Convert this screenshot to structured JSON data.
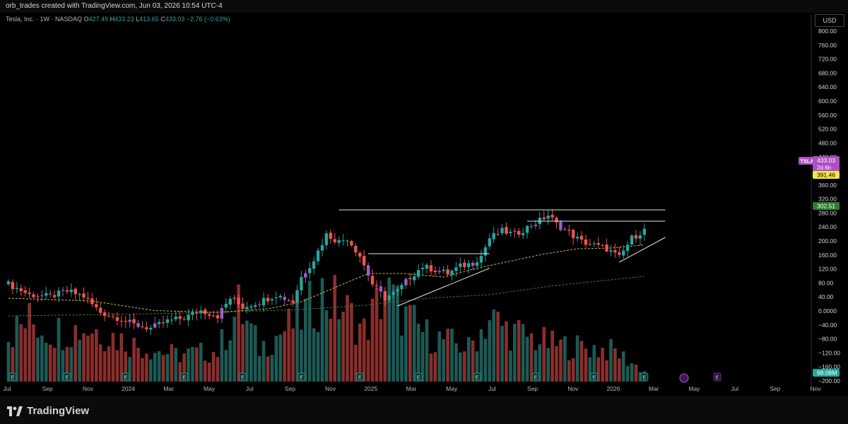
{
  "window": {
    "title": "orb_trades created with TradingView.com, Jun 03, 2026 10:54 UTC-4"
  },
  "header": {
    "symbol": "Tesla, Inc. · 1W · NASDAQ",
    "o_label": "O",
    "o": "427.49",
    "h_label": "H",
    "h": "433.23",
    "l_label": "L",
    "l": "413.65",
    "c_label": "C",
    "c": "433.03",
    "change": "−2.76 (−0.63%)"
  },
  "currency": "USD",
  "badges": {
    "ticker": "TSLA",
    "price": "433.03",
    "countdown": "2d 6h",
    "ma1": "391.46",
    "ma2": "302.51",
    "volume": "98.08M"
  },
  "footer": {
    "brand": "TradingView"
  },
  "colors": {
    "up": "#26a69a",
    "down": "#ef5350",
    "purple": "#9c5fc4",
    "ma_fast": "#c9b44a",
    "ma_slow": "#2e7d32",
    "badge_price": "#b04fc4",
    "badge_ma1": "#f2e64b",
    "badge_ma2": "#2e7d32"
  },
  "chart_data": {
    "type": "candlestick",
    "interval": "1W",
    "price_axis": {
      "ticks": [
        "800.00",
        "760.00",
        "720.00",
        "680.00",
        "640.00",
        "600.00",
        "560.00",
        "520.00",
        "480.00",
        "440.00",
        "400.00",
        "360.00",
        "320.00",
        "280.00",
        "240.00",
        "200.00",
        "160.00",
        "120.00",
        "80.00",
        "40.00",
        "0.0000",
        "−40.00",
        "−80.00",
        "−120.00",
        "−160.00",
        "−200.00"
      ]
    },
    "time_axis": {
      "labels": [
        "Jul",
        "Sep",
        "Nov",
        "2024",
        "Mar",
        "May",
        "Jul",
        "Sep",
        "Nov",
        "2025",
        "Mar",
        "May",
        "Jul",
        "Sep",
        "Nov",
        "2026",
        "Mar",
        "May",
        "Jul",
        "Sep",
        "Nov"
      ]
    },
    "anchors": [
      {
        "i": 0,
        "p": 280
      },
      {
        "i": 5,
        "p": 250
      },
      {
        "i": 10,
        "p": 245
      },
      {
        "i": 14,
        "p": 260
      },
      {
        "i": 18,
        "p": 245
      },
      {
        "i": 22,
        "p": 200
      },
      {
        "i": 26,
        "p": 185
      },
      {
        "i": 30,
        "p": 165
      },
      {
        "i": 34,
        "p": 155
      },
      {
        "i": 38,
        "p": 175
      },
      {
        "i": 42,
        "p": 185
      },
      {
        "i": 46,
        "p": 205
      },
      {
        "i": 50,
        "p": 190
      },
      {
        "i": 53,
        "p": 240
      },
      {
        "i": 56,
        "p": 215
      },
      {
        "i": 60,
        "p": 230
      },
      {
        "i": 64,
        "p": 250
      },
      {
        "i": 68,
        "p": 230
      },
      {
        "i": 70,
        "p": 300
      },
      {
        "i": 73,
        "p": 350
      },
      {
        "i": 76,
        "p": 420
      },
      {
        "i": 79,
        "p": 400
      },
      {
        "i": 81,
        "p": 410
      },
      {
        "i": 84,
        "p": 360
      },
      {
        "i": 87,
        "p": 280
      },
      {
        "i": 90,
        "p": 240
      },
      {
        "i": 93,
        "p": 260
      },
      {
        "i": 96,
        "p": 300
      },
      {
        "i": 99,
        "p": 330
      },
      {
        "i": 102,
        "p": 320
      },
      {
        "i": 105,
        "p": 310
      },
      {
        "i": 108,
        "p": 330
      },
      {
        "i": 111,
        "p": 340
      },
      {
        "i": 113,
        "p": 360
      },
      {
        "i": 115,
        "p": 410
      },
      {
        "i": 118,
        "p": 430
      },
      {
        "i": 121,
        "p": 420
      },
      {
        "i": 124,
        "p": 440
      },
      {
        "i": 127,
        "p": 460
      },
      {
        "i": 129,
        "p": 475
      },
      {
        "i": 131,
        "p": 450
      },
      {
        "i": 134,
        "p": 425
      },
      {
        "i": 137,
        "p": 400
      },
      {
        "i": 140,
        "p": 390
      },
      {
        "i": 143,
        "p": 380
      },
      {
        "i": 146,
        "p": 355
      },
      {
        "i": 149,
        "p": 410
      },
      {
        "i": 152,
        "p": 433
      }
    ],
    "volume_anchors": [
      {
        "i": 0,
        "v": 70
      },
      {
        "i": 5,
        "v": 90
      },
      {
        "i": 10,
        "v": 75
      },
      {
        "i": 20,
        "v": 80
      },
      {
        "i": 30,
        "v": 55
      },
      {
        "i": 40,
        "v": 40
      },
      {
        "i": 50,
        "v": 45
      },
      {
        "i": 55,
        "v": 110
      },
      {
        "i": 60,
        "v": 50
      },
      {
        "i": 70,
        "v": 95
      },
      {
        "i": 75,
        "v": 130
      },
      {
        "i": 80,
        "v": 110
      },
      {
        "i": 85,
        "v": 75
      },
      {
        "i": 90,
        "v": 135
      },
      {
        "i": 95,
        "v": 95
      },
      {
        "i": 100,
        "v": 70
      },
      {
        "i": 110,
        "v": 50
      },
      {
        "i": 115,
        "v": 95
      },
      {
        "i": 120,
        "v": 75
      },
      {
        "i": 130,
        "v": 55
      },
      {
        "i": 140,
        "v": 50
      },
      {
        "i": 145,
        "v": 45
      },
      {
        "i": 152,
        "v": 15
      }
    ],
    "ma_fast": [
      {
        "i": 0,
        "p": 240
      },
      {
        "i": 20,
        "p": 232
      },
      {
        "i": 35,
        "p": 205
      },
      {
        "i": 50,
        "p": 200
      },
      {
        "i": 62,
        "p": 210
      },
      {
        "i": 70,
        "p": 230
      },
      {
        "i": 78,
        "p": 270
      },
      {
        "i": 86,
        "p": 310
      },
      {
        "i": 94,
        "p": 310
      },
      {
        "i": 104,
        "p": 300
      },
      {
        "i": 112,
        "p": 325
      },
      {
        "i": 120,
        "p": 345
      },
      {
        "i": 128,
        "p": 365
      },
      {
        "i": 136,
        "p": 380
      },
      {
        "i": 144,
        "p": 382
      },
      {
        "i": 152,
        "p": 391
      }
    ],
    "ma_slow": [
      {
        "i": 0,
        "p": 190
      },
      {
        "i": 30,
        "p": 195
      },
      {
        "i": 50,
        "p": 200
      },
      {
        "i": 70,
        "p": 208
      },
      {
        "i": 85,
        "p": 220
      },
      {
        "i": 100,
        "p": 240
      },
      {
        "i": 115,
        "p": 250
      },
      {
        "i": 130,
        "p": 275
      },
      {
        "i": 152,
        "p": 302
      }
    ],
    "trendlines": [
      {
        "i1": 79,
        "p1": 490,
        "i2": 157,
        "p2": 490
      },
      {
        "i1": 86,
        "p1": 366,
        "i2": 115,
        "p2": 366
      },
      {
        "i1": 124,
        "p1": 458,
        "i2": 157,
        "p2": 458
      },
      {
        "i1": 93,
        "p1": 218,
        "i2": 115,
        "p2": 325
      },
      {
        "i1": 146,
        "p1": 342,
        "i2": 157,
        "p2": 412
      }
    ],
    "earnings_markers": [
      1,
      14,
      28,
      42,
      56,
      70,
      84,
      98,
      112,
      126,
      140,
      152
    ]
  }
}
